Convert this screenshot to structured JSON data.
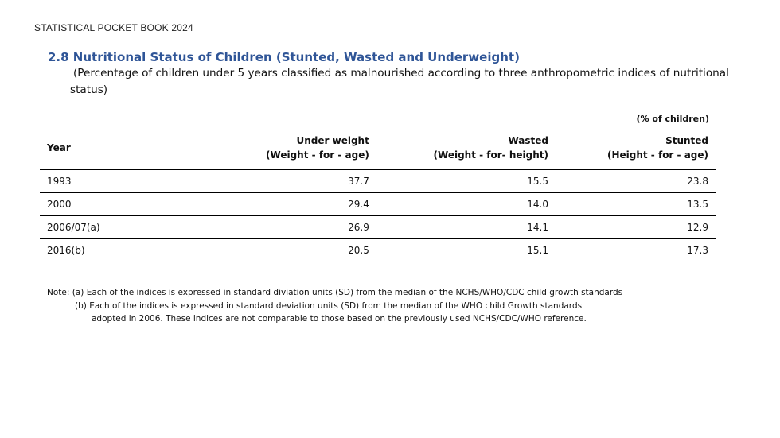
{
  "header": {
    "book_title": "STATISTICAL POCKET BOOK 2024"
  },
  "section": {
    "title": "2.8 Nutritional Status of Children (Stunted, Wasted and Underweight)",
    "subtitle": "(Percentage of children under 5 years classified as malnourished according to three anthropometric indices of nutritional status)",
    "unit_note": "(% of children)"
  },
  "table": {
    "columns": [
      {
        "line1": "Year",
        "line2": ""
      },
      {
        "line1": "Under weight",
        "line2": "(Weight - for - age)"
      },
      {
        "line1": "Wasted",
        "line2": "(Weight - for- height)"
      },
      {
        "line1": "Stunted",
        "line2": "(Height - for - age)"
      }
    ],
    "rows": [
      {
        "year": "1993",
        "underweight": "37.7",
        "wasted": "15.5",
        "stunted": "23.8"
      },
      {
        "year": "2000",
        "underweight": "29.4",
        "wasted": "14.0",
        "stunted": "13.5"
      },
      {
        "year": "2006/07(a)",
        "underweight": "26.9",
        "wasted": "14.1",
        "stunted": "12.9"
      },
      {
        "year": "2016(b)",
        "underweight": "20.5",
        "wasted": "15.1",
        "stunted": "17.3"
      }
    ]
  },
  "notes": {
    "line1": "Note:  (a)  Each of the indices is expressed in standard diviation units (SD) from the median of the NCHS/WHO/CDC child growth standards",
    "line2": "(b)  Each of the indices is expressed in standard deviation units (SD) from the median of the WHO child Growth standards",
    "line3": "adopted in 2006.  These indices are not comparable to those based on the previously used NCHS/CDC/WHO reference."
  }
}
